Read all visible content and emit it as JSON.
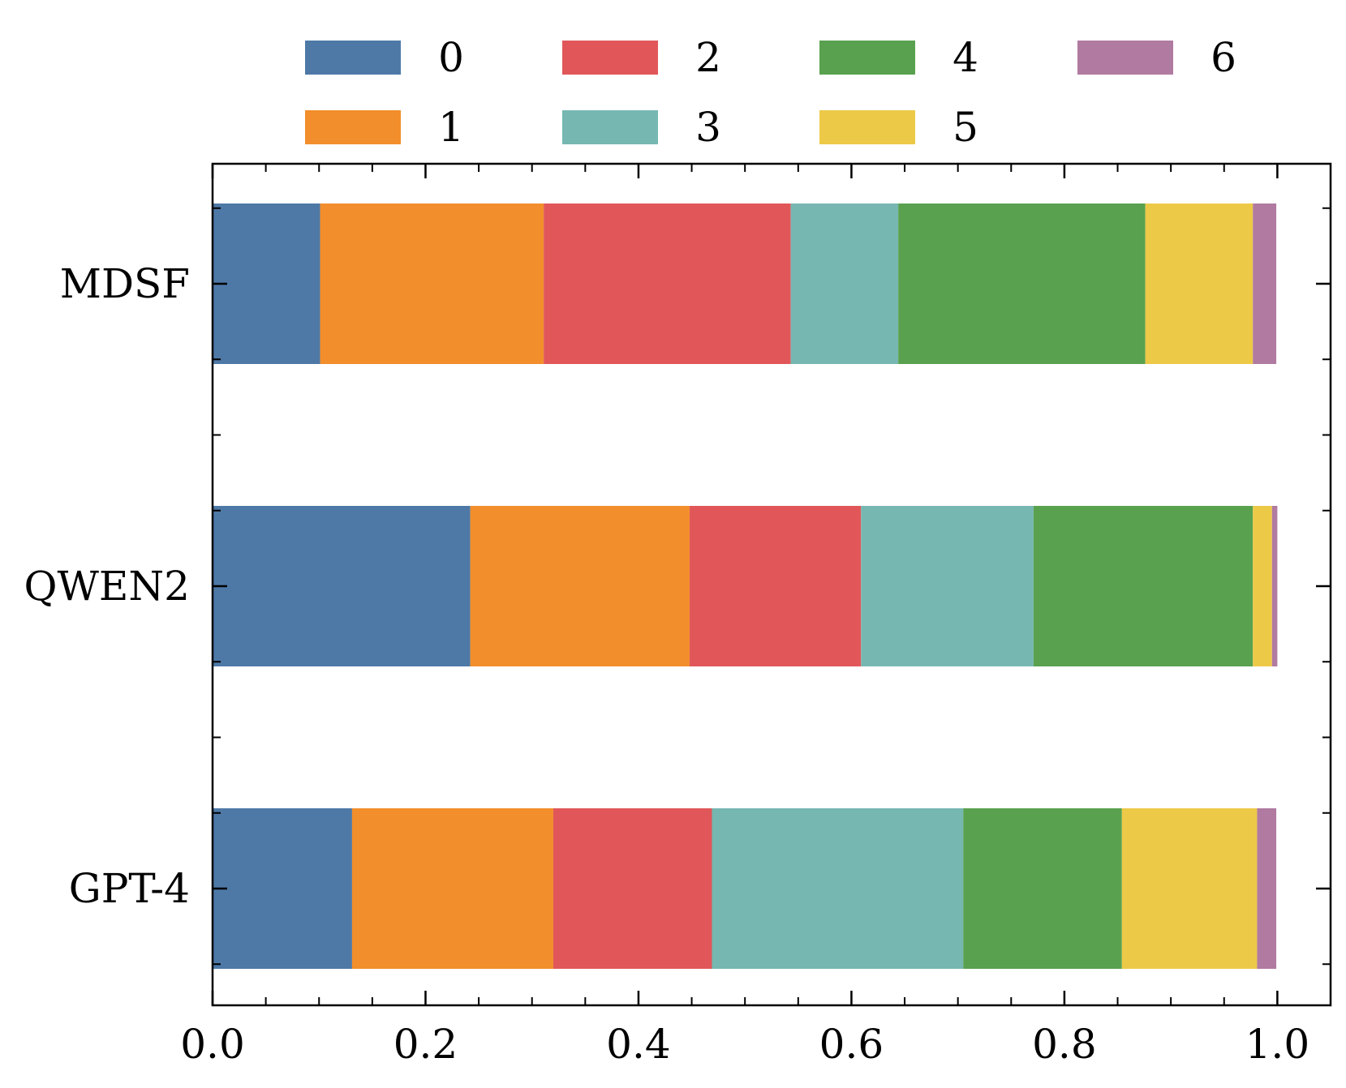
{
  "chart_data": {
    "type": "bar",
    "orientation": "horizontal",
    "stacked": true,
    "title": "",
    "xlabel": "",
    "ylabel": "",
    "xlim": [
      0.0,
      1.05
    ],
    "xticks": [
      "0.0",
      "0.2",
      "0.4",
      "0.6",
      "0.8",
      "1.0"
    ],
    "xtick_values": [
      0.0,
      0.2,
      0.4,
      0.6,
      0.8,
      1.0
    ],
    "grid": false,
    "legend_position": "top",
    "categories": [
      "MDSF",
      "QWEN2",
      "GPT-4"
    ],
    "series": [
      {
        "name": "0",
        "color": "#4e79a7",
        "values": [
          0.101,
          0.242,
          0.131
        ]
      },
      {
        "name": "1",
        "color": "#f28e2b",
        "values": [
          0.21,
          0.206,
          0.189
        ]
      },
      {
        "name": "2",
        "color": "#e15759",
        "values": [
          0.232,
          0.161,
          0.149
        ]
      },
      {
        "name": "3",
        "color": "#76b7b2",
        "values": [
          0.101,
          0.162,
          0.236
        ]
      },
      {
        "name": "4",
        "color": "#59a14f",
        "values": [
          0.232,
          0.206,
          0.149
        ]
      },
      {
        "name": "5",
        "color": "#edc948",
        "values": [
          0.101,
          0.018,
          0.127
        ]
      },
      {
        "name": "6",
        "color": "#b07aa1",
        "values": [
          0.022,
          0.005,
          0.018
        ]
      }
    ]
  }
}
